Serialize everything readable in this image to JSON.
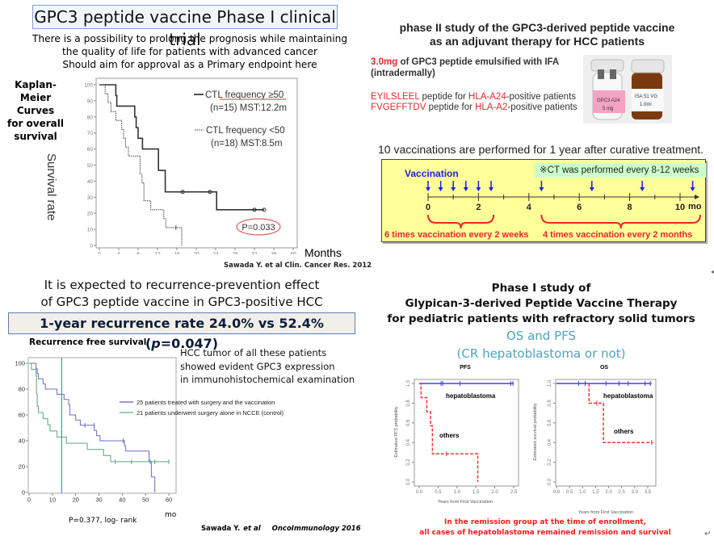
{
  "q1": {
    "title": "GPC3 peptide vaccine Phase I clinical trial",
    "description": [
      "There is a possibility to prolong the prognosis while maintaining",
      "the quality of life for patients with advanced cancer",
      "Should aim for approval as a Primary endpoint here"
    ],
    "km_label": [
      "Kaplan-Meier",
      "Curves",
      "for overall",
      "survival"
    ],
    "y_axis_label": "Survival rate",
    "x_axis_unit": "Months",
    "citation": "Sawada Y. et al Clin. Cancer Res. 2012"
  },
  "q2": {
    "title": [
      "phase II study of the GPC3-derived peptide vaccine",
      "as an adjuvant therapy for HCC patients"
    ],
    "dose": "3.0mg",
    "dose_rest": " of GPC3 peptide emulsified with IFA",
    "route": "(intradermally)",
    "peptides": [
      {
        "seq": "EYILSLEEL",
        "mid": " peptide for ",
        "hla": "HLA-A24",
        "tail": "-positive  patients"
      },
      {
        "seq": "FVGEFFTDV",
        "mid": " peptide for ",
        "hla": "HLA-A2",
        "tail": "-positive  patients"
      }
    ],
    "vial_labels": [
      "GPC3 A24",
      "5 mg",
      "ISA 51 VG",
      "1.0ml"
    ],
    "schedule_title": "10 vaccinations are performed for 1 year after curative treatment.",
    "ct_note": "※CT was performed  every  8-12 weeks",
    "vaccination_label": "Vaccination",
    "timeline": {
      "ticks": [
        "0",
        "2",
        "4",
        "6",
        "8",
        "10"
      ],
      "unit": "mo",
      "vaccination_months": [
        0,
        0.5,
        1,
        1.5,
        2,
        2.5,
        4.5,
        6.5,
        8.5,
        10.5
      ],
      "phase1_label": "6 times vaccination every 2 weeks",
      "phase2_label": "4 times vaccination every 2 months"
    }
  },
  "q3": {
    "expectation": [
      "It is expected to recurrence-prevention  effect",
      "of GPC3 peptide vaccine in GPC3-positive  HCC"
    ],
    "rate_banner": "1-year recurrence rate 24.0% vs 52.4% (p=0.047)",
    "rfs_title": "Recurrence free survival",
    "hcc_note": [
      "HCC tumor  of all these patients",
      "showed evident  GPC3 expression",
      "in immunohistochemical  examination"
    ],
    "p_value": "P=0.377, log- rank",
    "x_unit": "mo",
    "citation_author": "Sawada Y.",
    "citation_etal": "et al",
    "citation_journal": "OncoImmunology  2016"
  },
  "q4": {
    "title": [
      "Phase I study of",
      "Glypican-3-derived Peptide Vaccine Therapy",
      "for pediatric patients with refractory solid tumors"
    ],
    "subtitle": [
      "OS and PFS",
      "(CR hepatoblastoma  or not)"
    ],
    "footnote": [
      "In the remission group at the time of enrollment,",
      "all cases of hepatoblastoma remained remission and survival"
    ],
    "return_mark": "↵"
  },
  "chart_data": [
    {
      "id": "km-os-phase1",
      "type": "line",
      "title": "Kaplan-Meier Curves for overall survival",
      "xlabel": "Months",
      "ylabel": "Survival rate",
      "xlim": [
        0,
        40
      ],
      "ylim": [
        0,
        100
      ],
      "xticks": [
        0,
        4,
        8,
        12,
        16,
        20,
        24,
        28,
        32,
        36,
        40
      ],
      "yticks": [
        0,
        10,
        20,
        30,
        40,
        50,
        60,
        70,
        80,
        90,
        100
      ],
      "annotation": "P=0.033",
      "series": [
        {
          "name": "CTL frequency  ≥50",
          "detail": "(n=15)  MST:12.2m",
          "style": "solid",
          "x": [
            0,
            3.4,
            3.4,
            3.6,
            3.6,
            7.3,
            7.3,
            7.6,
            7.6,
            8.0,
            8.0,
            8.9,
            8.9,
            12.2,
            12.2,
            13.6,
            13.6,
            24.2,
            24.2,
            34
          ],
          "y": [
            100,
            100,
            93.3,
            93.3,
            86.7,
            86.7,
            80,
            80,
            73.3,
            73.3,
            66.7,
            66.7,
            60,
            60,
            46.7,
            46.7,
            33.3,
            33.3,
            22.2,
            22.2
          ],
          "censored": [
            [
              17.2,
              33.3
            ],
            [
              22.8,
              33.3
            ],
            [
              32,
              22.2
            ],
            [
              34,
              22.2
            ]
          ]
        },
        {
          "name": "CTL frequency  <50",
          "detail": "(n=18)  MST:8.5m",
          "style": "dotted",
          "x": [
            0,
            1.2,
            1.2,
            1.8,
            1.8,
            2.4,
            2.4,
            3.4,
            3.4,
            4.6,
            4.6,
            5.0,
            5.0,
            5.4,
            5.4,
            6.0,
            6.0,
            8.4,
            8.4,
            8.8,
            8.8,
            9.2,
            9.2,
            10.6,
            10.6,
            13.3,
            13.3,
            13.7,
            13.7,
            17.0,
            17.0
          ],
          "y": [
            100,
            100,
            94.4,
            94.4,
            88.9,
            88.9,
            83.3,
            83.3,
            77.8,
            77.8,
            72.2,
            72.2,
            66.7,
            66.7,
            61.1,
            61.1,
            55.6,
            55.6,
            44.4,
            44.4,
            38.9,
            38.9,
            27.8,
            27.8,
            22.2,
            22.2,
            16.7,
            16.7,
            11.1,
            11.1,
            0
          ],
          "censored": [
            [
              15.8,
              11.1
            ]
          ]
        }
      ]
    },
    {
      "id": "km-rfs-phase2",
      "type": "line",
      "title": "Recurrence free survival",
      "xlabel": "mo",
      "xlim": [
        0,
        60
      ],
      "ylim": [
        0,
        100
      ],
      "xticks": [
        0,
        10,
        20,
        30,
        40,
        50,
        60
      ],
      "yticks": [
        0,
        20,
        40,
        60,
        80,
        100
      ],
      "reference_line_x": 14,
      "annotation": "P=0.377, log- rank",
      "series": [
        {
          "name": "25 patients treated with surgery and the vaccination",
          "color": "#5a5fb5",
          "x": [
            0,
            3,
            3,
            3.5,
            3.5,
            4,
            4,
            6,
            6,
            7,
            7,
            12,
            12,
            15,
            15,
            17,
            17,
            17.5,
            17.5,
            20,
            20,
            22,
            22,
            28,
            28,
            29,
            29,
            30.5,
            30.5,
            41,
            41,
            41.5,
            41.5,
            51.5,
            51.5,
            52.5,
            52.5,
            54,
            54
          ],
          "y": [
            100,
            100,
            96,
            96,
            92,
            92,
            88,
            88,
            84,
            84,
            80,
            80,
            76,
            76,
            72,
            72,
            68,
            68,
            60,
            60,
            56,
            56,
            52,
            52,
            48,
            48,
            44,
            44,
            40,
            40,
            36,
            36,
            32,
            32,
            24,
            24,
            12,
            12,
            0
          ],
          "censored": [
            [
              24,
              52
            ],
            [
              28,
              52
            ],
            [
              40.5,
              40
            ]
          ]
        },
        {
          "name": "21 patients underwent surgery alone in NCCE (control)",
          "color": "#5ab58a",
          "x": [
            0,
            1,
            1,
            3,
            3,
            3.2,
            3.2,
            3.5,
            3.5,
            4,
            4,
            6,
            6,
            8,
            8,
            9,
            9,
            12,
            12,
            16,
            16,
            25,
            25,
            32,
            32,
            35,
            35,
            60
          ],
          "y": [
            100,
            100,
            95.2,
            95.2,
            90.5,
            90.5,
            76.2,
            76.2,
            66.7,
            66.7,
            61.9,
            61.9,
            57.1,
            57.1,
            52.4,
            52.4,
            47.6,
            47.6,
            42.9,
            42.9,
            38.1,
            38.1,
            33.3,
            33.3,
            28.6,
            28.6,
            23.8,
            23.8
          ],
          "censored": [
            [
              37,
              23.8
            ],
            [
              44,
              23.8
            ],
            [
              52,
              23.8
            ],
            [
              54,
              23.8
            ],
            [
              60,
              23.8
            ]
          ]
        }
      ]
    },
    {
      "id": "pfs-pediatric",
      "type": "line",
      "title": "PFS",
      "xlabel": "Years from First Vaccination",
      "ylabel": "Estimated PFS probability",
      "xlim": [
        0,
        2.5
      ],
      "ylim": [
        0,
        1
      ],
      "xticks": [
        "0.0",
        "0.5",
        "1.0",
        "1.5",
        "2.0",
        "2.5"
      ],
      "yticks": [
        "0.0",
        "0.2",
        "0.4",
        "0.6",
        "0.8",
        "1.0"
      ],
      "series": [
        {
          "name": "hepatoblastoma",
          "color": "#4040ff",
          "style": "solid",
          "x": [
            0,
            2.5
          ],
          "y": [
            1,
            1
          ],
          "censored": [
            [
              0.58,
              1
            ],
            [
              0.62,
              1
            ],
            [
              1.08,
              1
            ],
            [
              2.42,
              1
            ],
            [
              2.48,
              1
            ]
          ]
        },
        {
          "name": "others",
          "color": "#ff3030",
          "style": "dashed",
          "x": [
            0,
            0.05,
            0.05,
            0.2,
            0.2,
            0.3,
            0.3,
            0.35,
            0.35,
            1.55,
            1.55
          ],
          "y": [
            1,
            1,
            0.857,
            0.857,
            0.714,
            0.714,
            0.571,
            0.571,
            0.286,
            0.286,
            0
          ],
          "censored": [
            [
              0.72,
              0.286
            ]
          ]
        }
      ]
    },
    {
      "id": "os-pediatric",
      "type": "line",
      "title": "OS",
      "xlabel": "Years from First Vaccination",
      "ylabel": "Estimated survival probability",
      "xlim": [
        0,
        3.75
      ],
      "ylim": [
        0,
        1
      ],
      "xticks": [
        "0.0",
        "0.5",
        "1.0",
        "1.5",
        "2.0",
        "2.5",
        "3.0",
        "3.5"
      ],
      "yticks": [
        "0.0",
        "0.2",
        "0.4",
        "0.6",
        "0.8",
        "1.0"
      ],
      "series": [
        {
          "name": "hepatoblastoma",
          "color": "#4040ff",
          "style": "solid",
          "x": [
            0,
            3.65
          ],
          "y": [
            1,
            1
          ],
          "censored": [
            [
              0.85,
              1
            ],
            [
              1.1,
              1
            ],
            [
              1.9,
              1
            ],
            [
              2.4,
              1
            ],
            [
              2.75,
              1
            ],
            [
              3.4,
              1
            ],
            [
              3.6,
              1
            ]
          ]
        },
        {
          "name": "others",
          "color": "#ff3030",
          "style": "dashed",
          "x": [
            1.25,
            1.25,
            1.8,
            1.8,
            3.7
          ],
          "y": [
            1,
            0.8,
            0.8,
            0.4,
            0.4
          ],
          "censored": [
            [
              1.55,
              0.8
            ],
            [
              3.65,
              0.4
            ]
          ]
        }
      ]
    }
  ]
}
